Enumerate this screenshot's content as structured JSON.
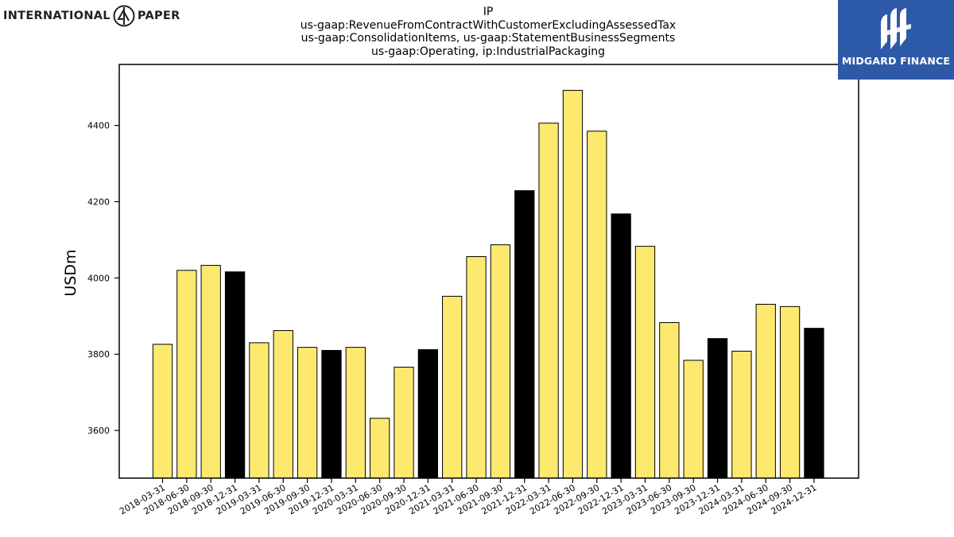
{
  "logos": {
    "left_word1": "INTERNATIONAL",
    "left_word2": "PAPER",
    "right_text": "MIDGARD FINANCE"
  },
  "title_lines": [
    "IP",
    "us-gaap:RevenueFromContractWithCustomerExcludingAssessedTax",
    "us-gaap:ConsolidationItems, us-gaap:StatementBusinessSegments",
    "us-gaap:Operating, ip:IndustrialPackaging"
  ],
  "colors": {
    "quarter_bar": "#fee96f",
    "year_end_bar": "#000000",
    "bar_edge": "#000000",
    "brand_right_bg": "#2d5aa8"
  },
  "chart_data": {
    "type": "bar",
    "title": "IP us-gaap:RevenueFromContractWithCustomerExcludingAssessedTax us-gaap:ConsolidationItems, us-gaap:StatementBusinessSegments us-gaap:Operating, ip:IndustrialPackaging",
    "xlabel": "",
    "ylabel": "USDm",
    "ylim": [
      3475,
      4560
    ],
    "yticks": [
      3600,
      3800,
      4000,
      4200,
      4400
    ],
    "grid": false,
    "categories": [
      "2018-03-31",
      "2018-06-30",
      "2018-09-30",
      "2018-12-31",
      "2019-03-31",
      "2019-06-30",
      "2019-09-30",
      "2019-12-31",
      "2020-03-31",
      "2020-06-30",
      "2020-09-30",
      "2020-12-31",
      "2021-03-31",
      "2021-06-30",
      "2021-09-30",
      "2021-12-31",
      "2022-03-31",
      "2022-06-30",
      "2022-09-30",
      "2022-12-31",
      "2023-03-31",
      "2023-06-30",
      "2023-09-30",
      "2023-12-31",
      "2024-03-31",
      "2024-06-30",
      "2024-09-30",
      "2024-12-31"
    ],
    "values": [
      3826,
      4020,
      4033,
      4016,
      3830,
      3862,
      3818,
      3810,
      3818,
      3632,
      3766,
      3812,
      3952,
      4056,
      4087,
      4229,
      4406,
      4492,
      4385,
      4168,
      4083,
      3883,
      3784,
      3841,
      3808,
      3931,
      3925,
      3868
    ],
    "year_end": [
      false,
      false,
      false,
      true,
      false,
      false,
      false,
      true,
      false,
      false,
      false,
      true,
      false,
      false,
      false,
      true,
      false,
      false,
      false,
      true,
      false,
      false,
      false,
      true,
      false,
      false,
      false,
      true
    ]
  }
}
